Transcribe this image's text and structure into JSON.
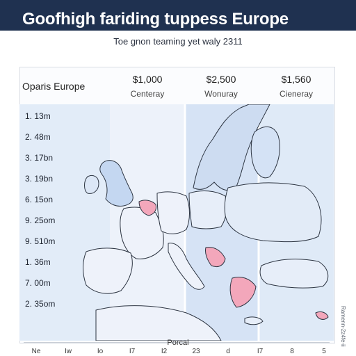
{
  "header": {
    "title": "Goofhigh fariding tuppess Europe",
    "subtitle": "Toe gnon teaming yet waly 2311"
  },
  "panel": {
    "title": "Oparis Europe",
    "columns": [
      {
        "price": "$1,000",
        "label": "Centeray"
      },
      {
        "price": "$2,500",
        "label": "Wonuray"
      },
      {
        "price": "$1,560",
        "label": "Cieneray"
      }
    ],
    "rows": [
      "1. 13m",
      "2. 48m",
      "3. 17bn",
      "3. 19bn",
      "6. 15on",
      "9. 25om",
      "9. 510m",
      "1. 36m",
      "7. 00m",
      "2. 35om"
    ]
  },
  "axis": {
    "title": "Porcal",
    "ticks": [
      "Ne",
      "Iw",
      "Io",
      "I7",
      "I2",
      "23",
      "d",
      "I7",
      "8",
      "5"
    ]
  },
  "side_note": "Ramenn-2z4fe-ii",
  "colors": {
    "header_bg": "#1f3150",
    "water": "#dbe7f6",
    "land": "#eef2fa",
    "highlight": "#f3a7bb",
    "highlight_blue": "#c7d8f2",
    "border": "#2c3441"
  },
  "chart_data": {
    "type": "table",
    "columns": [
      "$1,000",
      "$2,500",
      "$1,560"
    ],
    "rows": [
      "1. 13m",
      "2. 48m",
      "3. 17bn",
      "3. 19bn",
      "6. 15on",
      "9. 25om",
      "9. 510m",
      "1. 36m",
      "7. 00m",
      "2. 35om"
    ]
  }
}
